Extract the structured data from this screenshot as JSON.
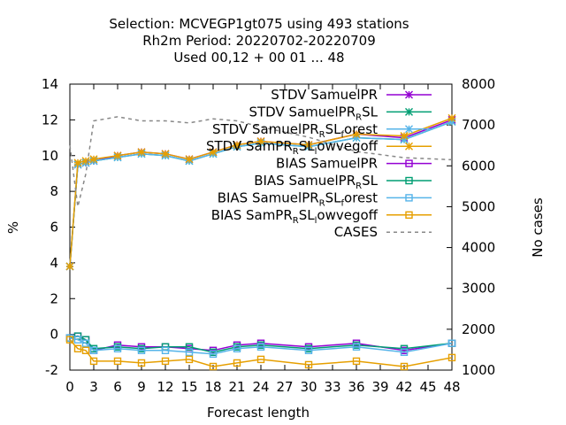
{
  "title": {
    "line1": "Selection: MCVEGP1gt075 using   493 stations",
    "line2": "Rh2m   Period: 20220702-20220709",
    "line3": "Used  00,12  + 00 01 ... 48"
  },
  "axes": {
    "xlabel": "Forecast length",
    "ylabel_left": "%",
    "ylabel_right": "No cases"
  },
  "chart_data": {
    "type": "line",
    "xlim": [
      0,
      48
    ],
    "ylim_left": [
      -2,
      14
    ],
    "ylim_right": [
      1000,
      8000
    ],
    "xticks": [
      0,
      3,
      6,
      9,
      12,
      15,
      18,
      21,
      24,
      27,
      30,
      33,
      36,
      39,
      42,
      45,
      48
    ],
    "yticks_left": [
      -2,
      0,
      2,
      4,
      6,
      8,
      10,
      12,
      14
    ],
    "yticks_right": [
      1000,
      2000,
      3000,
      4000,
      5000,
      6000,
      7000,
      8000
    ],
    "grid": false,
    "legend_position": "top-right",
    "x": [
      0,
      1,
      2,
      3,
      6,
      9,
      12,
      15,
      18,
      21,
      24,
      30,
      36,
      42,
      48
    ],
    "series": [
      {
        "name": "STDV SamuelPR",
        "name_parts": [
          [
            "STDV SamuelPR",
            ""
          ]
        ],
        "axis": "left",
        "color": "#9400d3",
        "marker": "x-star",
        "dash": "",
        "values": [
          3.8,
          9.5,
          9.6,
          9.7,
          10.0,
          10.2,
          10.1,
          9.8,
          10.2,
          10.6,
          10.8,
          10.6,
          11.2,
          11.0,
          12.0
        ]
      },
      {
        "name": "STDV SamuelPR_RSL",
        "name_parts": [
          [
            "STDV SamuelPR",
            ""
          ],
          [
            "R",
            "sub"
          ],
          [
            "SL",
            ""
          ]
        ],
        "axis": "left",
        "color": "#009e73",
        "marker": "x-star",
        "dash": "",
        "values": [
          3.8,
          9.5,
          9.6,
          9.7,
          9.9,
          10.1,
          10.0,
          9.7,
          10.1,
          10.5,
          10.7,
          10.5,
          11.0,
          10.9,
          11.9
        ]
      },
      {
        "name": "STDV SamuelPR_RSL_forest",
        "name_parts": [
          [
            "STDV SamuelPR",
            ""
          ],
          [
            "R",
            "sub"
          ],
          [
            "SL",
            ""
          ],
          [
            "f",
            "sub"
          ],
          [
            "orest",
            ""
          ]
        ],
        "axis": "left",
        "color": "#56b4e9",
        "marker": "x-star",
        "dash": "",
        "values": [
          3.8,
          9.5,
          9.6,
          9.7,
          9.9,
          10.1,
          10.0,
          9.7,
          10.1,
          10.5,
          10.7,
          10.5,
          11.0,
          10.9,
          11.9
        ]
      },
      {
        "name": "STDV SamPR_RSL_lowvegoff",
        "name_parts": [
          [
            "STDV SamPR",
            ""
          ],
          [
            "R",
            "sub"
          ],
          [
            "SL",
            ""
          ],
          [
            "l",
            "sub"
          ],
          [
            "owvegoff",
            ""
          ]
        ],
        "axis": "left",
        "color": "#e69f00",
        "marker": "x-star",
        "dash": "",
        "values": [
          3.8,
          9.6,
          9.7,
          9.8,
          10.0,
          10.2,
          10.1,
          9.8,
          10.2,
          10.6,
          10.8,
          10.6,
          11.2,
          11.1,
          12.1
        ]
      },
      {
        "name": "BIAS SamuelPR",
        "name_parts": [
          [
            "BIAS SamuelPR",
            ""
          ]
        ],
        "axis": "left",
        "color": "#9400d3",
        "marker": "square",
        "dash": "",
        "values": [
          -0.2,
          -0.1,
          -0.3,
          -0.9,
          -0.6,
          -0.7,
          -0.7,
          -0.8,
          -0.9,
          -0.6,
          -0.5,
          -0.7,
          -0.5,
          -0.9,
          -0.5
        ]
      },
      {
        "name": "BIAS SamuelPR_RSL",
        "name_parts": [
          [
            "BIAS SamuelPR",
            ""
          ],
          [
            "R",
            "sub"
          ],
          [
            "SL",
            ""
          ]
        ],
        "axis": "left",
        "color": "#009e73",
        "marker": "square",
        "dash": "",
        "values": [
          -0.2,
          -0.1,
          -0.3,
          -0.8,
          -0.7,
          -0.8,
          -0.7,
          -0.7,
          -1.0,
          -0.7,
          -0.6,
          -0.8,
          -0.6,
          -0.8,
          -0.5
        ]
      },
      {
        "name": "BIAS SamuelPR_RSL_forest",
        "name_parts": [
          [
            "BIAS SamuelPR",
            ""
          ],
          [
            "R",
            "sub"
          ],
          [
            "SL",
            ""
          ],
          [
            "f",
            "sub"
          ],
          [
            "orest",
            ""
          ]
        ],
        "axis": "left",
        "color": "#56b4e9",
        "marker": "square",
        "dash": "",
        "values": [
          -0.2,
          -0.3,
          -0.5,
          -0.9,
          -0.8,
          -0.9,
          -0.9,
          -1.0,
          -1.1,
          -0.8,
          -0.7,
          -0.9,
          -0.7,
          -1.0,
          -0.5
        ]
      },
      {
        "name": "BIAS SamPR_RSL_lowvegoff",
        "name_parts": [
          [
            "BIAS SamPR",
            ""
          ],
          [
            "R",
            "sub"
          ],
          [
            "SL",
            ""
          ],
          [
            "l",
            "sub"
          ],
          [
            "owvegoff",
            ""
          ]
        ],
        "axis": "left",
        "color": "#e69f00",
        "marker": "square",
        "dash": "",
        "values": [
          -0.3,
          -0.8,
          -0.9,
          -1.5,
          -1.5,
          -1.6,
          -1.5,
          -1.4,
          -1.8,
          -1.6,
          -1.4,
          -1.7,
          -1.5,
          -1.8,
          -1.3
        ]
      },
      {
        "name": "CASES",
        "name_parts": [
          [
            "CASES",
            ""
          ]
        ],
        "axis": "right",
        "color": "#888888",
        "marker": "none",
        "dash": "4 4",
        "values": [
          6500,
          5000,
          5800,
          7100,
          7200,
          7100,
          7100,
          7050,
          7150,
          7100,
          6950,
          6700,
          6350,
          6200,
          6150
        ]
      }
    ]
  }
}
